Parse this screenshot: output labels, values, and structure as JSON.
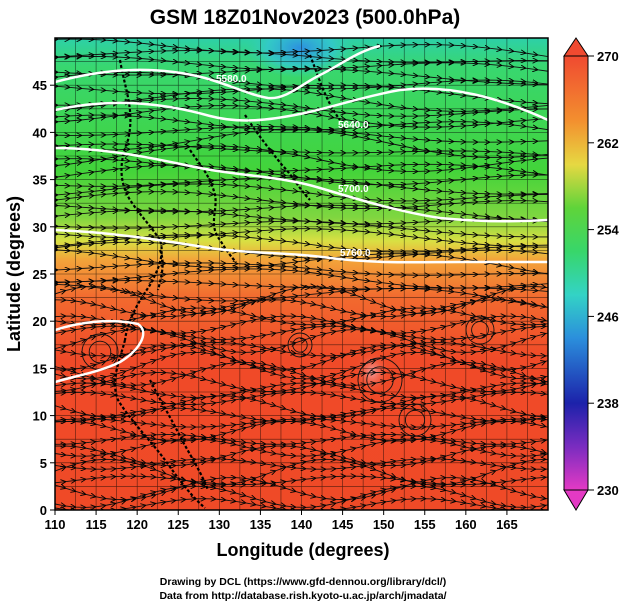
{
  "title": "GSM 18Z01Nov2023 (500.0hPa)",
  "x_axis": {
    "label": "Longitude (degrees)",
    "ticks": [
      "110",
      "115",
      "120",
      "125",
      "130",
      "135",
      "140",
      "145",
      "150",
      "155",
      "160",
      "165"
    ]
  },
  "y_axis": {
    "label": "Latitude  (degrees)",
    "ticks": [
      "0",
      "5",
      "10",
      "15",
      "20",
      "25",
      "30",
      "35",
      "40",
      "45"
    ]
  },
  "colorbar": {
    "labels": [
      "270",
      "262",
      "254",
      "246",
      "238",
      "230"
    ]
  },
  "contour_labels": [
    "5580.0",
    "5640.0",
    "5700.0",
    "5760.0"
  ],
  "credits": {
    "line1": "Drawing by DCL (https://www.gfd-dennou.org/library/dcl/)",
    "line2": "Data from http://database.rish.kyoto-u.ac.jp/arch/jmadata/"
  },
  "map_data": {
    "type": "temperature-and-streamline-map",
    "lon_range": [
      110,
      170
    ],
    "lat_range": [
      0,
      50
    ],
    "colorbar_range": [
      230,
      270
    ],
    "colors": {
      "warm": "#f04a28",
      "mid_orange": "#f3a43a",
      "yellow": "#e9e24a",
      "green": "#3fd23a",
      "cyan": "#34d1c2",
      "blue": "#2d7fd8",
      "navy": "#1a20a8",
      "magenta": "#e43ac4"
    }
  }
}
